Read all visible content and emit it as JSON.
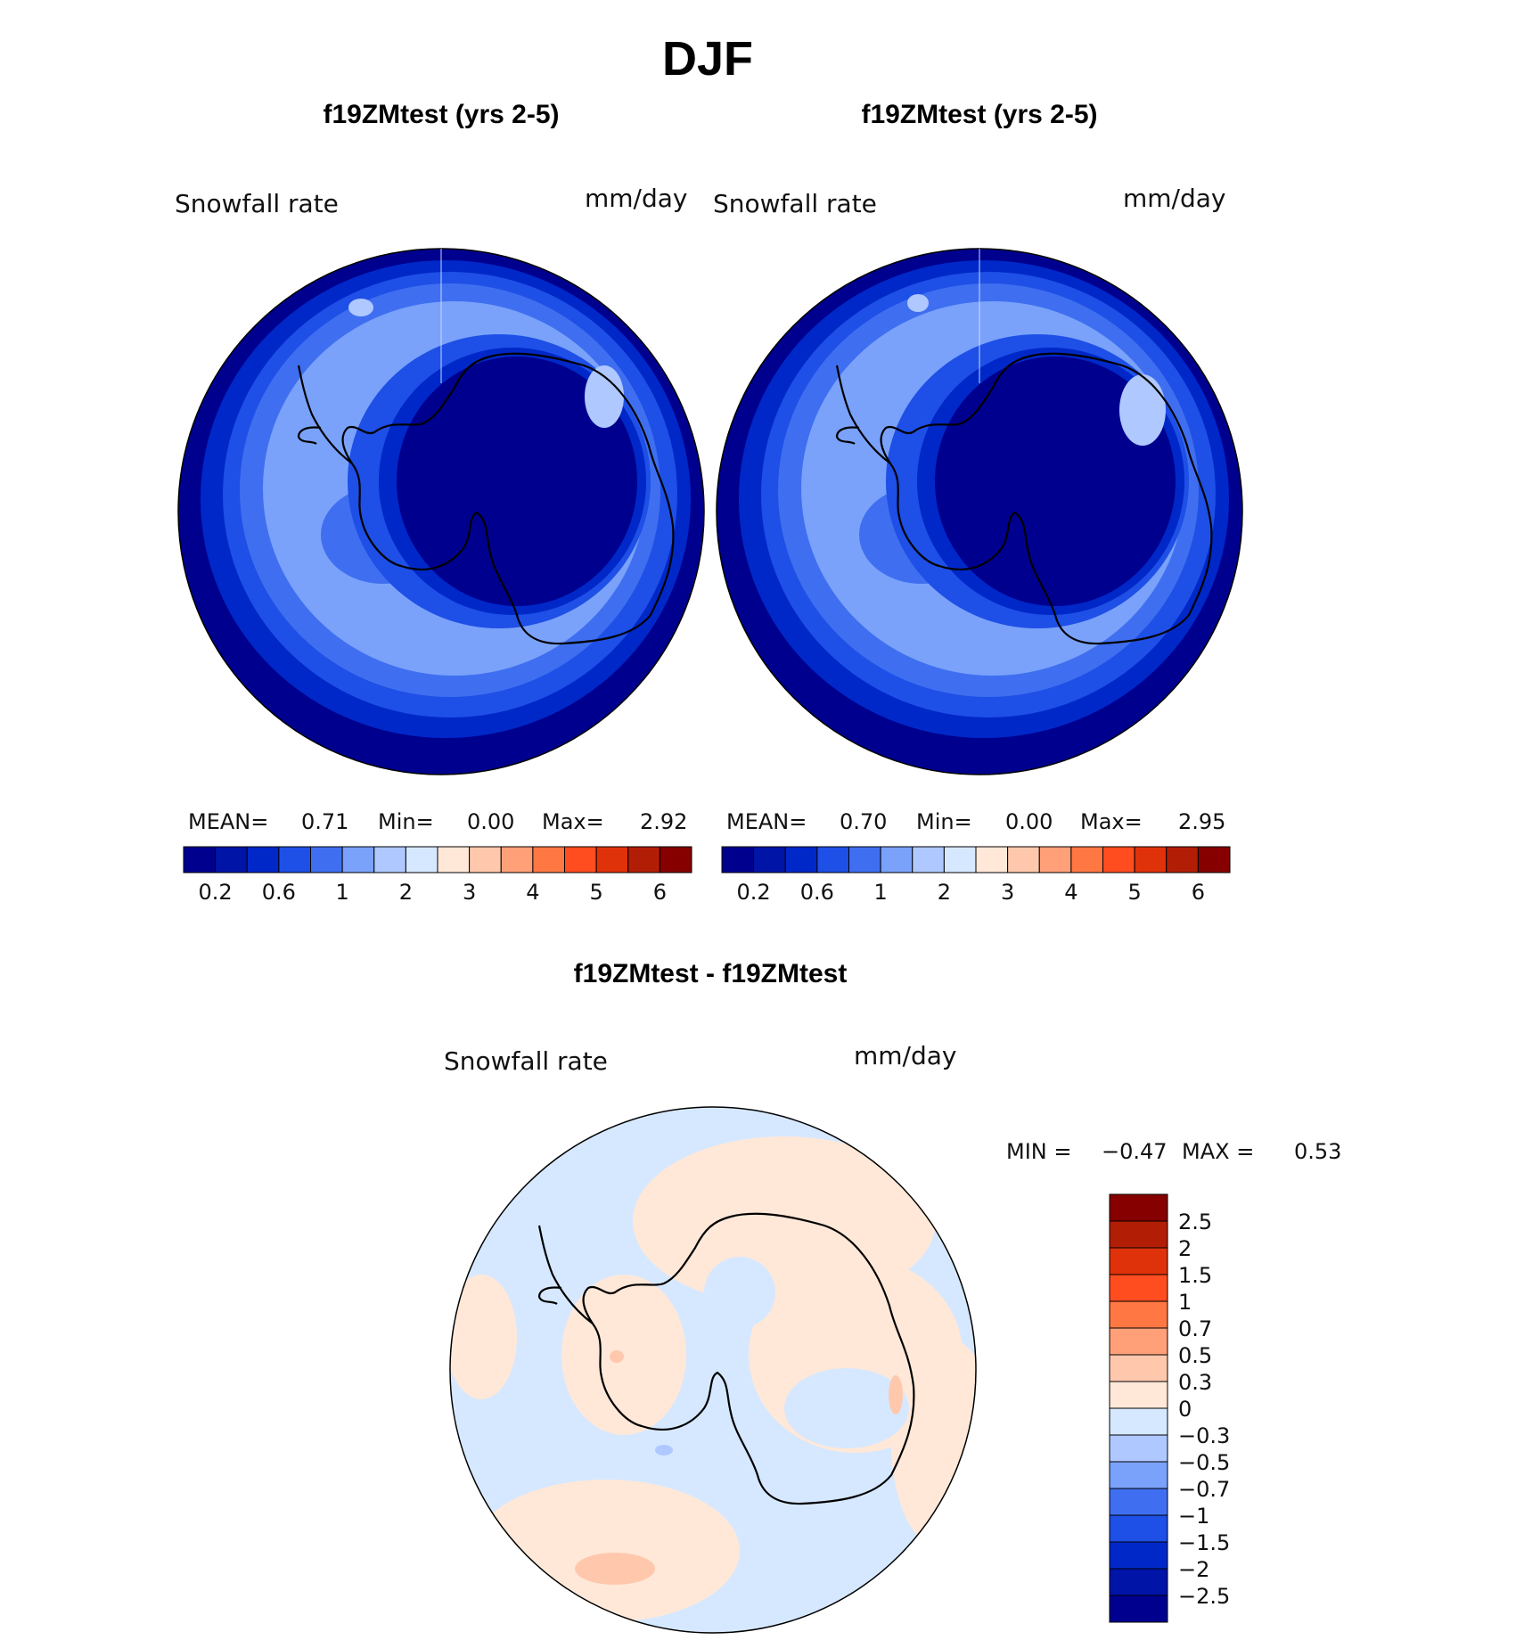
{
  "figure": {
    "season_title": "DJF"
  },
  "colors": {
    "seq_fills": [
      "#00008f",
      "#0014a8",
      "#0028c8",
      "#1e4fe6",
      "#3f6ff0",
      "#7aa2fa",
      "#afc8ff",
      "#d6e8ff",
      "#ffe8d8",
      "#ffc8ad",
      "#ffa078",
      "#ff7843",
      "#ff4d1f",
      "#e0320a",
      "#b21e05",
      "#860000"
    ],
    "diff_fills": [
      "#00008f",
      "#0014a8",
      "#0028c8",
      "#1e4fe6",
      "#3f6ff0",
      "#7aa2fa",
      "#afc8ff",
      "#d6e8ff",
      "#ffe8d8",
      "#ffc8ad",
      "#ffa078",
      "#ff7843",
      "#ff4d1f",
      "#e0320a",
      "#b21e05",
      "#860000"
    ],
    "coast": "#000000"
  },
  "chart_data": [
    {
      "type": "heatmap",
      "projection": "south-polar-stereographic",
      "title": "f19ZMtest (yrs 2-5)",
      "variable": "Snowfall rate",
      "units": "mm/day",
      "stats": {
        "mean_label": "MEAN=",
        "mean": "0.71",
        "min_label": "Min=",
        "min": "0.00",
        "max_label": "Max=",
        "max": "2.92"
      },
      "colorbar": {
        "orientation": "horizontal",
        "levels": [
          0.1,
          0.2,
          0.4,
          0.6,
          0.8,
          1,
          1.5,
          2,
          2.5,
          3,
          3.5,
          4,
          4.5,
          5,
          5.5,
          6
        ],
        "tick_labels": [
          "0.2",
          "0.6",
          "1",
          "2",
          "3",
          "4",
          "5",
          "6"
        ]
      }
    },
    {
      "type": "heatmap",
      "projection": "south-polar-stereographic",
      "title": "f19ZMtest (yrs 2-5)",
      "variable": "Snowfall rate",
      "units": "mm/day",
      "stats": {
        "mean_label": "MEAN=",
        "mean": "0.70",
        "min_label": "Min=",
        "min": "0.00",
        "max_label": "Max=",
        "max": "2.95"
      },
      "colorbar": {
        "orientation": "horizontal",
        "levels": [
          0.1,
          0.2,
          0.4,
          0.6,
          0.8,
          1,
          1.5,
          2,
          2.5,
          3,
          3.5,
          4,
          4.5,
          5,
          5.5,
          6
        ],
        "tick_labels": [
          "0.2",
          "0.6",
          "1",
          "2",
          "3",
          "4",
          "5",
          "6"
        ]
      }
    },
    {
      "type": "heatmap",
      "projection": "south-polar-stereographic",
      "title": "f19ZMtest - f19ZMtest",
      "variable": "Snowfall rate",
      "units": "mm/day",
      "stats": {
        "min_label": "MIN =",
        "min": "−0.47",
        "max_label": "MAX =",
        "max": "0.53"
      },
      "colorbar": {
        "orientation": "vertical",
        "levels": [
          -2.5,
          -2,
          -1.5,
          -1,
          -0.7,
          -0.5,
          -0.3,
          0,
          0.3,
          0.5,
          0.7,
          1,
          1.5,
          2,
          2.5
        ],
        "tick_labels": [
          "−2.5",
          "−2",
          "−1.5",
          "−1",
          "−0.7",
          "−0.5",
          "−0.3",
          "0",
          "0.3",
          "0.5",
          "0.7",
          "1",
          "1.5",
          "2",
          "2.5"
        ]
      }
    }
  ]
}
